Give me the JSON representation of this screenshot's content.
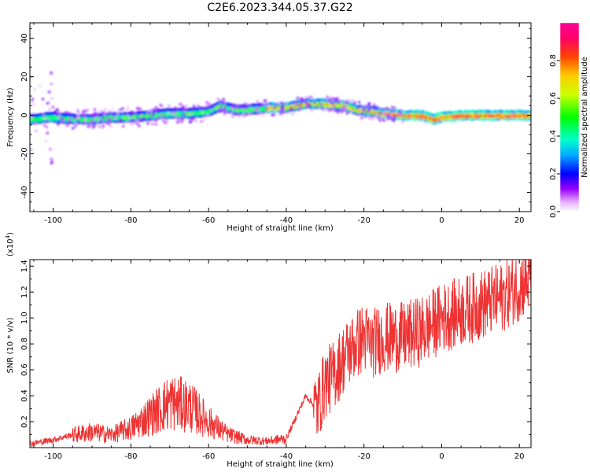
{
  "title": "C2E6.2023.344.05.37.G22",
  "chart_data": [
    {
      "type": "heatmap",
      "xlabel": "Height of straight line (km)",
      "ylabel": "Frequency (Hz)",
      "xlim": [
        -106,
        23
      ],
      "ylim": [
        -50,
        48
      ],
      "xticks": [
        "-100",
        "-80",
        "-60",
        "-40",
        "-20",
        "0",
        "20"
      ],
      "yticks": [
        "-40",
        "-20",
        "0",
        "20",
        "40"
      ],
      "colorbar": {
        "label": "Normalized spectral amplitude",
        "range": [
          0,
          1
        ],
        "ticks": [
          "0.0",
          "0.2",
          "0.4",
          "0.6",
          "0.8"
        ]
      },
      "ridge": {
        "x": [
          -106,
          -100,
          -95,
          -90,
          -85,
          -80,
          -75,
          -70,
          -65,
          -60,
          -57,
          -53,
          -50,
          -45,
          -40,
          -35,
          -30,
          -25,
          -22,
          -18,
          -15,
          -10,
          -5,
          -2,
          0,
          5,
          10,
          15,
          20,
          22
        ],
        "y": [
          -2,
          -1,
          -2,
          -2,
          -1,
          -1,
          0,
          1,
          1,
          2,
          5,
          3,
          3,
          4,
          4,
          6,
          6,
          5,
          3,
          2,
          1,
          0,
          0,
          -2,
          -1,
          0,
          0,
          0,
          0,
          0
        ]
      }
    },
    {
      "type": "line",
      "xlabel": "Height of straight line (km)",
      "ylabel": "SNR (10 * v/v)",
      "multiplier_label": "(x10",
      "multiplier_exp": "4",
      "multiplier_close": ")",
      "xlim": [
        -106,
        23
      ],
      "ylim": [
        0,
        1.45
      ],
      "xticks": [
        "-100",
        "-80",
        "-60",
        "-40",
        "-20",
        "0",
        "20"
      ],
      "yticks": [
        "0.2",
        "0.4",
        "0.6",
        "0.8",
        "1.0",
        "1.2",
        "1.4"
      ],
      "series_color": "#ee3333",
      "envelope": {
        "x": [
          -106,
          -100,
          -95,
          -90,
          -85,
          -80,
          -75,
          -70,
          -65,
          -60,
          -55,
          -50,
          -45,
          -40,
          -38,
          -35,
          -32,
          -30,
          -28,
          -25,
          -22,
          -20,
          -18,
          -15,
          -10,
          -5,
          0,
          5,
          10,
          15,
          20,
          23
        ],
        "y": [
          0.03,
          0.06,
          0.1,
          0.12,
          0.1,
          0.15,
          0.25,
          0.35,
          0.32,
          0.2,
          0.1,
          0.06,
          0.05,
          0.07,
          0.2,
          0.4,
          0.3,
          0.5,
          0.55,
          0.7,
          0.8,
          0.85,
          0.8,
          0.85,
          0.85,
          0.9,
          1.0,
          1.05,
          1.1,
          1.15,
          1.25,
          1.3
        ]
      }
    }
  ]
}
